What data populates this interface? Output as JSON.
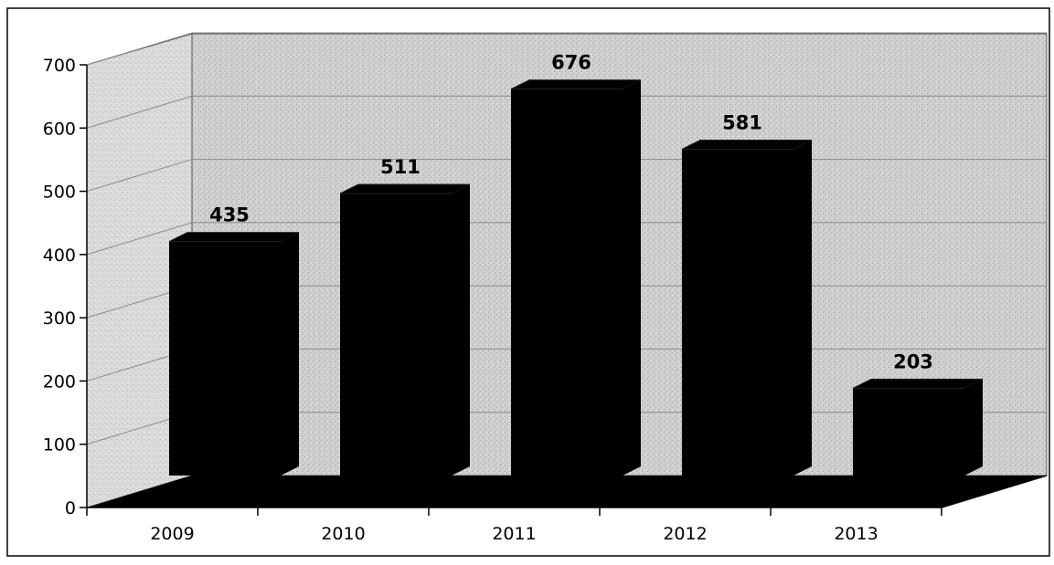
{
  "chart_data": {
    "type": "bar",
    "style": "3d",
    "categories": [
      "2009",
      "2010",
      "2011",
      "2012",
      "2013"
    ],
    "values": [
      435,
      511,
      676,
      581,
      203
    ],
    "data_labels": [
      "435",
      "511",
      "676",
      "581",
      "203"
    ],
    "ylim": [
      0,
      700
    ],
    "yticks": [
      0,
      100,
      200,
      300,
      400,
      500,
      600,
      700
    ],
    "ytick_labels": [
      "0",
      "100",
      "200",
      "300",
      "400",
      "500",
      "600",
      "700"
    ],
    "grid": true,
    "legend": "none",
    "colors": {
      "bar": "#000000",
      "wall": "#c9c9c9",
      "floor": "#000000",
      "grid": "#8a8a8a"
    }
  }
}
